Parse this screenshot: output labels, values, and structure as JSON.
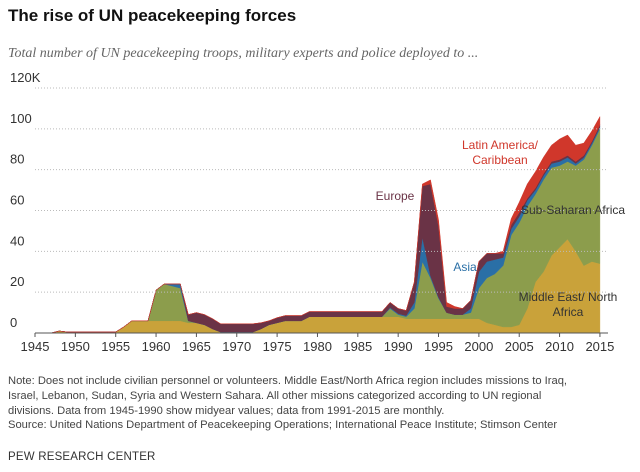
{
  "chart_data": {
    "type": "stacked-area",
    "title": "The rise of UN peacekeeping forces",
    "subtitle": "Total number of UN peacekeeping troops, military experts and police deployed to ...",
    "x": [
      1945,
      1946,
      1947,
      1948,
      1949,
      1950,
      1951,
      1952,
      1953,
      1954,
      1955,
      1956,
      1957,
      1958,
      1959,
      1960,
      1961,
      1962,
      1963,
      1964,
      1965,
      1966,
      1967,
      1968,
      1969,
      1970,
      1971,
      1972,
      1973,
      1974,
      1975,
      1976,
      1977,
      1978,
      1979,
      1980,
      1981,
      1982,
      1983,
      1984,
      1985,
      1986,
      1987,
      1988,
      1989,
      1990,
      1991,
      1992,
      1993,
      1994,
      1995,
      1996,
      1997,
      1998,
      1999,
      2000,
      2001,
      2002,
      2003,
      2004,
      2005,
      2006,
      2007,
      2008,
      2009,
      2010,
      2011,
      2012,
      2013,
      2014,
      2015
    ],
    "xlim": [
      1945,
      2016
    ],
    "xticks": [
      1945,
      1950,
      1955,
      1960,
      1965,
      1970,
      1975,
      1980,
      1985,
      1990,
      1995,
      2000,
      2005,
      2010,
      2015
    ],
    "ylim": [
      0,
      120
    ],
    "yticks": [
      0,
      20,
      40,
      60,
      80,
      100,
      {
        "value": 120,
        "label": "120K"
      }
    ],
    "grid": true,
    "series": [
      {
        "name": "Middle East/ North Africa",
        "color": "#c9a23a",
        "label_color": "#333333",
        "values": [
          0,
          0,
          0,
          1,
          0.5,
          0.5,
          0.5,
          0.5,
          0.5,
          0.5,
          0.5,
          3,
          6,
          6,
          6,
          6,
          6,
          6,
          6,
          5,
          5,
          4,
          2,
          0.5,
          0.5,
          0.5,
          0.5,
          0.5,
          2,
          4,
          5,
          6,
          6,
          6,
          8,
          8,
          8,
          8,
          8,
          8,
          8,
          8,
          8,
          8,
          8,
          8,
          7,
          7,
          7,
          7,
          7,
          7,
          7,
          7,
          7,
          7,
          5,
          4,
          3,
          3,
          4,
          12,
          25,
          30,
          38,
          42,
          46,
          40,
          33,
          35,
          34
        ]
      },
      {
        "name": "Sub-Saharan Africa",
        "color": "#8c9d4c",
        "label_color": "#333333",
        "values": [
          0,
          0,
          0,
          0,
          0,
          0,
          0,
          0,
          0,
          0,
          0,
          0,
          0,
          0,
          0,
          15,
          18,
          17,
          16,
          1,
          0,
          0,
          0,
          0,
          0,
          0,
          0,
          0,
          0,
          0,
          0,
          0,
          0,
          0,
          0,
          0,
          0,
          0,
          0,
          0,
          0,
          0,
          0,
          0,
          4,
          1,
          1,
          5,
          28,
          20,
          10,
          3,
          2,
          2,
          3,
          15,
          22,
          25,
          30,
          45,
          50,
          50,
          43,
          45,
          43,
          40,
          38,
          42,
          52,
          57,
          66
        ]
      },
      {
        "name": "Asia",
        "color": "#2a6fa6",
        "label_color": "#2a6fa6",
        "values": [
          0,
          0,
          0,
          0,
          0,
          0,
          0,
          0,
          0,
          0,
          0,
          0,
          0,
          0,
          0,
          0,
          0,
          1,
          2,
          0,
          0,
          0,
          0,
          0,
          0,
          0,
          0,
          0,
          0,
          0,
          0,
          0,
          0,
          0,
          0,
          0,
          0,
          0,
          0,
          0,
          0,
          0,
          0,
          0,
          0.5,
          0.5,
          0.5,
          3,
          12,
          1,
          0.5,
          0,
          0,
          0,
          2,
          8,
          8,
          7,
          4,
          3,
          3,
          3,
          2,
          2,
          2,
          2,
          2,
          1,
          1,
          1,
          1
        ]
      },
      {
        "name": "Europe",
        "color": "#6a3346",
        "label_color": "#6a3346",
        "values": [
          0,
          0,
          0,
          0,
          0,
          0,
          0,
          0,
          0,
          0,
          0,
          0,
          0,
          0,
          0,
          0,
          0,
          0,
          0,
          3,
          5,
          5,
          5,
          4,
          4,
          4,
          4,
          4,
          3,
          2,
          2.5,
          2.5,
          2.5,
          2.5,
          2.5,
          2.5,
          2.5,
          2.5,
          2.5,
          2.5,
          2.5,
          2.5,
          2.5,
          2.5,
          2.5,
          2.5,
          2.5,
          10,
          25,
          45,
          35,
          3,
          3,
          3,
          4,
          5,
          4,
          3,
          2,
          2,
          2,
          1,
          1,
          1,
          1,
          1,
          1,
          1,
          1,
          1,
          1
        ]
      },
      {
        "name": "Latin America/ Caribbean",
        "color": "#d0372b",
        "label_color": "#d0372b",
        "values": [
          0,
          0,
          0,
          0,
          0,
          0,
          0,
          0,
          0,
          0,
          0,
          0,
          0,
          0,
          0,
          0,
          0,
          0,
          0,
          0,
          0,
          0,
          0,
          0,
          0,
          0,
          0,
          0,
          0,
          0,
          0,
          0,
          0,
          0,
          0,
          0,
          0,
          0,
          0,
          0,
          0,
          0,
          0,
          0,
          0,
          0,
          0,
          0,
          1,
          2,
          3,
          2,
          1,
          0,
          0,
          0,
          0,
          0,
          1,
          3,
          5,
          7,
          8,
          8,
          8,
          10,
          10,
          8,
          6,
          5,
          4
        ]
      }
    ],
    "note": "Note: Does not include civilian personnel or volunteers. Middle East/North Africa region includes missions to Iraq, Israel, Lebanon, Sudan, Syria and Western Sahara. All other missions categorized according to UN regional divisions. Data from 1945-1990 show midyear values; data from 1991-2015 are monthly.",
    "source": "Source: United Nations Department of Peacekeeping Operations; International Peace Institute; Stimson Center",
    "credit": "PEW RESEARCH CENTER"
  }
}
